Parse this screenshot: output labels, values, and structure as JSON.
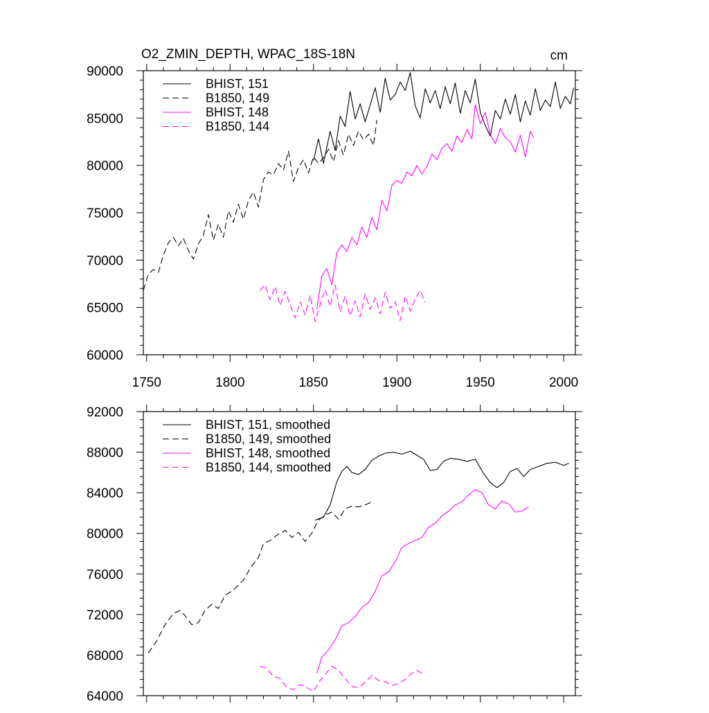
{
  "title": "O2_ZMIN_DEPTH, WPAC_18S-18N",
  "unit": "cm",
  "colors": {
    "black": "#000000",
    "magenta": "#ff00ff"
  },
  "chart_data": [
    {
      "type": "line",
      "panel": "top",
      "xlim": [
        1748,
        2007
      ],
      "ylim": [
        60000,
        90000
      ],
      "xticks": [
        1750,
        1800,
        1850,
        1900,
        1950,
        2000
      ],
      "yticks": [
        60000,
        65000,
        70000,
        75000,
        80000,
        85000,
        90000
      ],
      "x_tick_labels_shown": true,
      "legend": "top-left",
      "series": [
        {
          "name": "BHIST, 151",
          "color": "#000000",
          "dash": "solid",
          "x": [
            1850,
            1853,
            1856,
            1860,
            1863,
            1866,
            1869,
            1872,
            1875,
            1878,
            1881,
            1884,
            1887,
            1890,
            1893,
            1896,
            1899,
            1902,
            1905,
            1908,
            1911,
            1914,
            1917,
            1920,
            1923,
            1926,
            1929,
            1932,
            1935,
            1938,
            1941,
            1944,
            1947,
            1950,
            1953,
            1956,
            1959,
            1962,
            1965,
            1968,
            1971,
            1974,
            1977,
            1980,
            1983,
            1986,
            1989,
            1992,
            1995,
            1998,
            2001,
            2004,
            2006
          ],
          "y": [
            80500,
            82800,
            80200,
            83600,
            81600,
            85200,
            84100,
            87800,
            84900,
            86500,
            84600,
            86400,
            88200,
            85600,
            89200,
            86900,
            87500,
            88800,
            87900,
            89800,
            86300,
            85000,
            88100,
            86600,
            87900,
            86000,
            88300,
            86500,
            88700,
            85500,
            87900,
            86600,
            89100,
            85600,
            84200,
            83100,
            85800,
            84900,
            87000,
            85400,
            87500,
            84600,
            86800,
            85300,
            88100,
            85800,
            86900,
            86200,
            88800,
            86000,
            87300,
            86500,
            88200
          ]
        },
        {
          "name": "B1850, 149",
          "color": "#000000",
          "dash": "dashed",
          "x": [
            1748,
            1751,
            1754,
            1757,
            1760,
            1763,
            1766,
            1769,
            1772,
            1775,
            1778,
            1781,
            1784,
            1787,
            1790,
            1793,
            1796,
            1799,
            1802,
            1805,
            1808,
            1811,
            1814,
            1817,
            1820,
            1823,
            1826,
            1829,
            1832,
            1835,
            1838,
            1841,
            1844,
            1847,
            1850,
            1853,
            1856,
            1859,
            1862,
            1865,
            1868,
            1871,
            1874,
            1877,
            1880,
            1883,
            1886,
            1888
          ],
          "y": [
            66800,
            68500,
            69000,
            68700,
            70500,
            71800,
            72400,
            71500,
            72300,
            71000,
            70100,
            71700,
            72600,
            74800,
            72100,
            73800,
            72400,
            75200,
            74000,
            75900,
            74300,
            76300,
            77200,
            75600,
            78500,
            79300,
            79000,
            80200,
            79500,
            81500,
            78300,
            79800,
            80600,
            79200,
            80900,
            80200,
            80800,
            81700,
            80400,
            82600,
            81100,
            83300,
            82100,
            83600,
            82700,
            83300,
            82100,
            84800
          ]
        },
        {
          "name": "BHIST, 148",
          "color": "#ff00ff",
          "dash": "solid",
          "x": [
            1852,
            1855,
            1858,
            1861,
            1864,
            1867,
            1870,
            1873,
            1876,
            1879,
            1882,
            1885,
            1888,
            1891,
            1894,
            1897,
            1900,
            1903,
            1906,
            1909,
            1912,
            1915,
            1918,
            1921,
            1924,
            1927,
            1930,
            1933,
            1936,
            1939,
            1942,
            1945,
            1947,
            1950,
            1953,
            1956,
            1959,
            1962,
            1965,
            1968,
            1971,
            1974,
            1977,
            1980,
            1982
          ],
          "y": [
            64800,
            68300,
            69100,
            67400,
            70800,
            71600,
            70900,
            72400,
            71600,
            73500,
            72400,
            74500,
            73200,
            76300,
            75200,
            77900,
            78400,
            78100,
            79300,
            78900,
            80000,
            79100,
            79900,
            81200,
            80600,
            81800,
            82300,
            81500,
            83100,
            82400,
            83800,
            82800,
            86400,
            84400,
            85600,
            83300,
            82300,
            83900,
            82900,
            82500,
            81400,
            83200,
            80900,
            83600,
            82900
          ]
        },
        {
          "name": "B1850, 144",
          "color": "#ff00ff",
          "dash": "dashed",
          "x": [
            1818,
            1821,
            1824,
            1827,
            1830,
            1833,
            1836,
            1839,
            1842,
            1845,
            1848,
            1851,
            1854,
            1857,
            1860,
            1863,
            1866,
            1869,
            1872,
            1875,
            1878,
            1881,
            1884,
            1887,
            1890,
            1893,
            1896,
            1899,
            1902,
            1905,
            1908,
            1911,
            1914,
            1917
          ],
          "y": [
            66800,
            67400,
            65800,
            67200,
            65200,
            66700,
            65300,
            63900,
            65600,
            64200,
            66300,
            63500,
            65300,
            66900,
            65100,
            67400,
            64500,
            66200,
            64100,
            65700,
            64000,
            66400,
            64800,
            66000,
            64300,
            66600,
            64900,
            65600,
            63600,
            66200,
            64600,
            65900,
            66800,
            65500
          ]
        }
      ]
    },
    {
      "type": "line",
      "panel": "bottom",
      "xlim": [
        1748,
        2007
      ],
      "ylim": [
        64000,
        92000
      ],
      "xticks": [
        1750,
        1800,
        1850,
        1900,
        1950,
        2000
      ],
      "yticks": [
        64000,
        68000,
        72000,
        76000,
        80000,
        84000,
        88000,
        92000
      ],
      "x_tick_labels_shown": false,
      "legend": "top-left",
      "series": [
        {
          "name": "BHIST, 151, smoothed",
          "color": "#000000",
          "dash": "solid",
          "x": [
            1851,
            1856,
            1860,
            1864,
            1867,
            1870,
            1873,
            1877,
            1881,
            1885,
            1889,
            1893,
            1898,
            1903,
            1908,
            1912,
            1916,
            1920,
            1924,
            1928,
            1932,
            1937,
            1942,
            1947,
            1952,
            1956,
            1960,
            1964,
            1968,
            1972,
            1976,
            1980,
            1985,
            1990,
            1995,
            2000,
            2003
          ],
          "y": [
            81300,
            81600,
            82800,
            85100,
            86100,
            86600,
            86000,
            85800,
            86300,
            87200,
            87600,
            87900,
            88000,
            87800,
            88100,
            87700,
            87300,
            86200,
            86300,
            87100,
            87400,
            87300,
            87100,
            87300,
            85900,
            85000,
            84500,
            85000,
            86100,
            86400,
            85600,
            86300,
            86600,
            86900,
            87000,
            86700,
            86900
          ]
        },
        {
          "name": "B1850, 149, smoothed",
          "color": "#000000",
          "dash": "dashed",
          "x": [
            1751,
            1756,
            1761,
            1766,
            1770,
            1773,
            1777,
            1781,
            1785,
            1789,
            1793,
            1797,
            1802,
            1808,
            1813,
            1817,
            1820,
            1824,
            1828,
            1833,
            1837,
            1841,
            1845,
            1849,
            1853,
            1857,
            1861,
            1865,
            1869,
            1873,
            1877,
            1881,
            1885
          ],
          "y": [
            68200,
            69400,
            71000,
            72100,
            72400,
            71900,
            71000,
            71200,
            72400,
            73000,
            72600,
            73900,
            74400,
            75400,
            76800,
            77600,
            79000,
            79300,
            79800,
            80300,
            79600,
            80100,
            79200,
            80000,
            81300,
            81800,
            82100,
            81400,
            82400,
            82700,
            82600,
            82800,
            83100
          ]
        },
        {
          "name": "BHIST, 148, smoothed",
          "color": "#ff00ff",
          "dash": "solid",
          "x": [
            1852,
            1855,
            1859,
            1863,
            1867,
            1871,
            1875,
            1879,
            1883,
            1887,
            1891,
            1895,
            1899,
            1903,
            1907,
            1911,
            1915,
            1919,
            1923,
            1927,
            1931,
            1935,
            1939,
            1943,
            1947,
            1951,
            1955,
            1959,
            1963,
            1967,
            1971,
            1975,
            1979
          ],
          "y": [
            66200,
            67800,
            68500,
            69500,
            70900,
            71200,
            71800,
            72700,
            73200,
            74300,
            75800,
            76200,
            77200,
            78600,
            79000,
            79300,
            79600,
            80600,
            81000,
            81700,
            82200,
            82800,
            83100,
            83800,
            84300,
            84000,
            82800,
            82400,
            83200,
            82900,
            82100,
            82200,
            82600
          ]
        },
        {
          "name": "B1850, 144, smoothed",
          "color": "#ff00ff",
          "dash": "dashed",
          "x": [
            1818,
            1822,
            1826,
            1830,
            1834,
            1838,
            1842,
            1846,
            1850,
            1853,
            1857,
            1861,
            1865,
            1869,
            1873,
            1877,
            1881,
            1885,
            1889,
            1893,
            1897,
            1901,
            1905,
            1909,
            1912,
            1915
          ],
          "y": [
            66900,
            66700,
            65900,
            65700,
            64800,
            64600,
            65100,
            64800,
            64400,
            65300,
            66100,
            66900,
            66500,
            65700,
            64900,
            64800,
            65300,
            66000,
            65500,
            65400,
            65000,
            65200,
            65600,
            66200,
            66500,
            66200
          ]
        }
      ]
    }
  ]
}
